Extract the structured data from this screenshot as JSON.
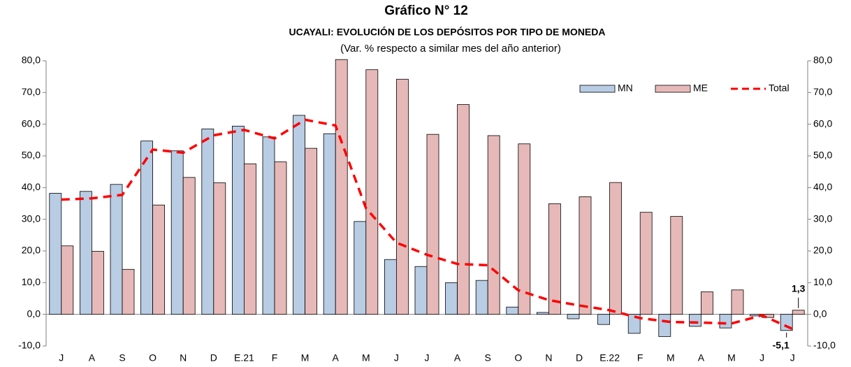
{
  "chart_data": {
    "type": "bar",
    "title": "Gráfico N° 12",
    "subtitle": "UCAYALI: EVOLUCIÓN DE LOS DEPÓSITOS POR TIPO DE MONEDA",
    "note": "(Var. % respecto a similar mes del año anterior)",
    "categories": [
      "J",
      "A",
      "S",
      "O",
      "N",
      "D",
      "E.21",
      "F",
      "M",
      "A",
      "M",
      "J",
      "J",
      "A",
      "S",
      "O",
      "N",
      "D",
      "E.22",
      "F",
      "M",
      "A",
      "M",
      "J",
      "J"
    ],
    "series": [
      {
        "name": "MN",
        "type": "bar",
        "color": "#b8cce4",
        "values": [
          38.2,
          38.8,
          41.0,
          54.7,
          51.6,
          58.5,
          59.4,
          56.0,
          62.8,
          57.0,
          29.3,
          17.3,
          15.1,
          10.0,
          10.7,
          2.3,
          0.6,
          -1.4,
          -3.2,
          -6.0,
          -7.0,
          -3.8,
          -4.3,
          -0.5,
          -5.1
        ],
        "value_labels": [
          null,
          null,
          null,
          null,
          null,
          null,
          null,
          null,
          null,
          null,
          null,
          null,
          null,
          null,
          null,
          null,
          null,
          null,
          null,
          null,
          null,
          null,
          null,
          null,
          "-5,1"
        ]
      },
      {
        "name": "ME",
        "type": "bar",
        "color": "#e6b9b8",
        "values": [
          21.6,
          19.9,
          14.2,
          34.5,
          43.2,
          41.5,
          47.5,
          48.1,
          52.4,
          80.4,
          77.2,
          74.2,
          56.8,
          66.2,
          56.4,
          53.8,
          34.9,
          37.1,
          41.6,
          32.2,
          30.9,
          7.1,
          7.7,
          -1.0,
          1.3
        ],
        "value_labels": [
          null,
          null,
          null,
          null,
          null,
          null,
          null,
          null,
          null,
          null,
          null,
          null,
          null,
          null,
          null,
          null,
          null,
          null,
          null,
          null,
          null,
          null,
          null,
          null,
          "1,3"
        ]
      },
      {
        "name": "Total",
        "type": "line",
        "color": "#ff0000",
        "values": [
          36.2,
          36.6,
          37.7,
          52.0,
          51.0,
          56.5,
          58.2,
          55.5,
          61.4,
          59.6,
          33.5,
          22.6,
          18.8,
          15.9,
          15.5,
          7.6,
          4.5,
          2.8,
          1.3,
          -1.2,
          -2.4,
          -2.6,
          -2.9,
          -0.3,
          -4.6
        ]
      }
    ],
    "ylim": [
      -10,
      80
    ],
    "yticks": [
      {
        "value": -10,
        "label": "-10,0"
      },
      {
        "value": 0,
        "label": "0,0"
      },
      {
        "value": 10,
        "label": "10,0"
      },
      {
        "value": 20,
        "label": "20,0"
      },
      {
        "value": 30,
        "label": "30,0"
      },
      {
        "value": 40,
        "label": "40,0"
      },
      {
        "value": 50,
        "label": "50,0"
      },
      {
        "value": 60,
        "label": "60,0"
      },
      {
        "value": 70,
        "label": "70,0"
      },
      {
        "value": 80,
        "label": "80,0"
      }
    ],
    "y2lim": [
      -10,
      80
    ],
    "y2ticks": [
      {
        "value": -10,
        "label": "-10,0"
      },
      {
        "value": 0,
        "label": "0,0"
      },
      {
        "value": 10,
        "label": "10,0"
      },
      {
        "value": 20,
        "label": "20,0"
      },
      {
        "value": 30,
        "label": "30,0"
      },
      {
        "value": 40,
        "label": "40,0"
      },
      {
        "value": 50,
        "label": "50,0"
      },
      {
        "value": 60,
        "label": "60,0"
      },
      {
        "value": 70,
        "label": "70,0"
      },
      {
        "value": 80,
        "label": "80,0"
      }
    ],
    "legend": "top-right",
    "grid": false
  }
}
